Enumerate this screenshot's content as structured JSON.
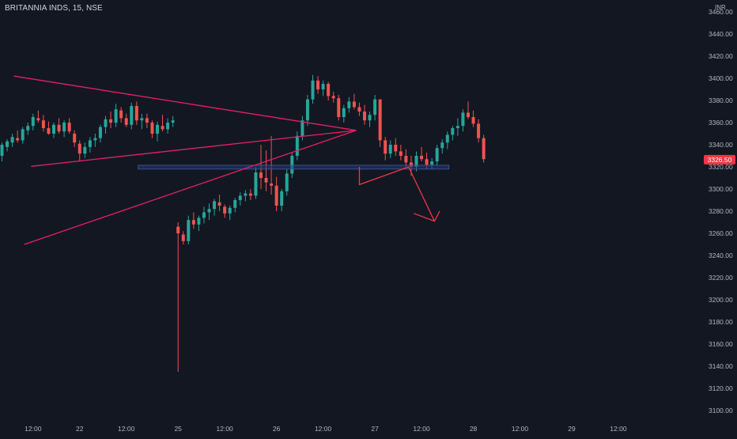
{
  "header": {
    "symbol_title": "BRITANNIA INDS, 15, NSE",
    "currency": "INR"
  },
  "colors": {
    "background": "#131722",
    "up": "#26a69a",
    "down": "#ef5350",
    "pattern": "#e91e63",
    "projection": "#f23645",
    "support_zone": "#2a3a6b",
    "axis_text": "#b2b5be",
    "price_label_bg": "#f23645"
  },
  "chart_data": {
    "type": "candlestick",
    "ylim": [
      3090,
      3465
    ],
    "y_ticks": [
      3100,
      3120,
      3140,
      3160,
      3180,
      3200,
      3220,
      3240,
      3260,
      3280,
      3300,
      3320,
      3340,
      3360,
      3380,
      3400,
      3420,
      3440,
      3460
    ],
    "y_tick_labels": [
      "3100.00",
      "3120.00",
      "3140.00",
      "3160.00",
      "3180.00",
      "3200.00",
      "3220.00",
      "3240.00",
      "3260.00",
      "3280.00",
      "3300.00",
      "3320.00",
      "3340.00",
      "3360.00",
      "3380.00",
      "3400.00",
      "3420.00",
      "3440.00",
      "3460.00"
    ],
    "x_ticks": [
      {
        "label": "12:00",
        "bar": 6
      },
      {
        "label": "22",
        "bar": 15
      },
      {
        "label": "12:00",
        "bar": 24
      },
      {
        "label": "25",
        "bar": 34
      },
      {
        "label": "12:00",
        "bar": 43
      },
      {
        "label": "26",
        "bar": 53
      },
      {
        "label": "12:00",
        "bar": 62
      },
      {
        "label": "27",
        "bar": 72
      },
      {
        "label": "12:00",
        "bar": 81
      },
      {
        "label": "28",
        "bar": 91
      },
      {
        "label": "12:00",
        "bar": 100
      },
      {
        "label": "29",
        "bar": 110
      },
      {
        "label": "12:00",
        "bar": 119
      }
    ],
    "last_price": 3326.5,
    "last_price_label": "3326.50",
    "candles": [
      [
        3330,
        3342,
        3325,
        3340
      ],
      [
        3338,
        3345,
        3334,
        3343
      ],
      [
        3342,
        3350,
        3338,
        3347
      ],
      [
        3346,
        3353,
        3342,
        3344
      ],
      [
        3344,
        3356,
        3341,
        3354
      ],
      [
        3353,
        3360,
        3349,
        3357
      ],
      [
        3357,
        3368,
        3353,
        3365
      ],
      [
        3364,
        3371,
        3360,
        3362
      ],
      [
        3362,
        3367,
        3352,
        3355
      ],
      [
        3355,
        3361,
        3349,
        3350
      ],
      [
        3350,
        3360,
        3346,
        3358
      ],
      [
        3358,
        3364,
        3350,
        3352
      ],
      [
        3352,
        3362,
        3347,
        3360
      ],
      [
        3360,
        3364,
        3350,
        3352
      ],
      [
        3350,
        3353,
        3338,
        3342
      ],
      [
        3341,
        3344,
        3325,
        3332
      ],
      [
        3332,
        3342,
        3328,
        3338
      ],
      [
        3338,
        3347,
        3333,
        3344
      ],
      [
        3344,
        3350,
        3338,
        3346
      ],
      [
        3346,
        3358,
        3342,
        3356
      ],
      [
        3356,
        3366,
        3350,
        3363
      ],
      [
        3363,
        3370,
        3355,
        3360
      ],
      [
        3360,
        3377,
        3356,
        3372
      ],
      [
        3371,
        3374,
        3360,
        3364
      ],
      [
        3364,
        3368,
        3356,
        3358
      ],
      [
        3358,
        3378,
        3354,
        3375
      ],
      [
        3375,
        3379,
        3358,
        3362
      ],
      [
        3362,
        3368,
        3354,
        3364
      ],
      [
        3364,
        3368,
        3355,
        3360
      ],
      [
        3360,
        3362,
        3346,
        3350
      ],
      [
        3350,
        3361,
        3343,
        3358
      ],
      [
        3357,
        3367,
        3352,
        3354
      ],
      [
        3354,
        3364,
        3350,
        3360
      ],
      [
        3360,
        3366,
        3356,
        3362
      ],
      [
        3266,
        3270,
        3135,
        3260
      ],
      [
        3259,
        3262,
        3250,
        3253
      ],
      [
        3253,
        3276,
        3250,
        3272
      ],
      [
        3272,
        3279,
        3264,
        3268
      ],
      [
        3268,
        3276,
        3262,
        3274
      ],
      [
        3274,
        3284,
        3269,
        3279
      ],
      [
        3279,
        3287,
        3272,
        3282
      ],
      [
        3282,
        3291,
        3276,
        3289
      ],
      [
        3288,
        3295,
        3280,
        3285
      ],
      [
        3284,
        3286,
        3274,
        3278
      ],
      [
        3278,
        3285,
        3272,
        3283
      ],
      [
        3283,
        3292,
        3279,
        3290
      ],
      [
        3290,
        3297,
        3285,
        3294
      ],
      [
        3294,
        3299,
        3289,
        3296
      ],
      [
        3296,
        3300,
        3290,
        3294
      ],
      [
        3294,
        3320,
        3291,
        3315
      ],
      [
        3315,
        3340,
        3300,
        3310
      ],
      [
        3310,
        3335,
        3298,
        3306
      ],
      [
        3305,
        3348,
        3295,
        3303
      ],
      [
        3303,
        3311,
        3280,
        3285
      ],
      [
        3285,
        3300,
        3280,
        3298
      ],
      [
        3298,
        3318,
        3294,
        3314
      ],
      [
        3314,
        3333,
        3310,
        3330
      ],
      [
        3330,
        3352,
        3326,
        3348
      ],
      [
        3348,
        3366,
        3344,
        3362
      ],
      [
        3362,
        3385,
        3357,
        3381
      ],
      [
        3381,
        3403,
        3377,
        3398
      ],
      [
        3398,
        3402,
        3386,
        3390
      ],
      [
        3390,
        3398,
        3384,
        3395
      ],
      [
        3395,
        3397,
        3380,
        3384
      ],
      [
        3384,
        3388,
        3378,
        3382
      ],
      [
        3382,
        3385,
        3362,
        3365
      ],
      [
        3365,
        3376,
        3360,
        3373
      ],
      [
        3373,
        3383,
        3369,
        3379
      ],
      [
        3379,
        3386,
        3372,
        3374
      ],
      [
        3374,
        3378,
        3366,
        3370
      ],
      [
        3370,
        3376,
        3358,
        3362
      ],
      [
        3362,
        3370,
        3356,
        3367
      ],
      [
        3367,
        3385,
        3362,
        3381
      ],
      [
        3381,
        3381,
        3338,
        3344
      ],
      [
        3344,
        3347,
        3326,
        3332
      ],
      [
        3332,
        3344,
        3328,
        3340
      ],
      [
        3340,
        3346,
        3330,
        3334
      ],
      [
        3334,
        3340,
        3326,
        3330
      ],
      [
        3330,
        3336,
        3320,
        3324
      ],
      [
        3324,
        3330,
        3312,
        3320
      ],
      [
        3320,
        3334,
        3316,
        3330
      ],
      [
        3330,
        3338,
        3325,
        3327
      ],
      [
        3327,
        3333,
        3318,
        3322
      ],
      [
        3322,
        3328,
        3318,
        3325
      ],
      [
        3325,
        3340,
        3321,
        3337
      ],
      [
        3337,
        3345,
        3332,
        3342
      ],
      [
        3342,
        3352,
        3336,
        3349
      ],
      [
        3349,
        3357,
        3344,
        3355
      ],
      [
        3355,
        3364,
        3348,
        3357
      ],
      [
        3357,
        3372,
        3352,
        3369
      ],
      [
        3369,
        3379,
        3363,
        3365
      ],
      [
        3365,
        3371,
        3356,
        3359
      ],
      [
        3359,
        3363,
        3342,
        3346
      ],
      [
        3346,
        3349,
        3324,
        3327
      ]
    ]
  },
  "drawings": {
    "upper_line": [
      [
        2.3,
        3402
      ],
      [
        68.4,
        3353
      ]
    ],
    "lower_line": [
      [
        4.3,
        3250
      ],
      [
        68.4,
        3353
      ]
    ],
    "support_line": [
      [
        5.6,
        3320.5
      ],
      [
        68.4,
        3353
      ]
    ],
    "support_zone": [
      [
        26.3,
        3321.5
      ],
      [
        86.3,
        3318
      ]
    ],
    "projection_path": [
      [
        69,
        3320
      ],
      [
        69,
        3304
      ],
      [
        78.5,
        3320
      ],
      [
        83.5,
        3271
      ]
    ],
    "arrow_head": [
      [
        79.5,
        3278
      ],
      [
        83.5,
        3271
      ],
      [
        84.5,
        3280
      ]
    ]
  }
}
